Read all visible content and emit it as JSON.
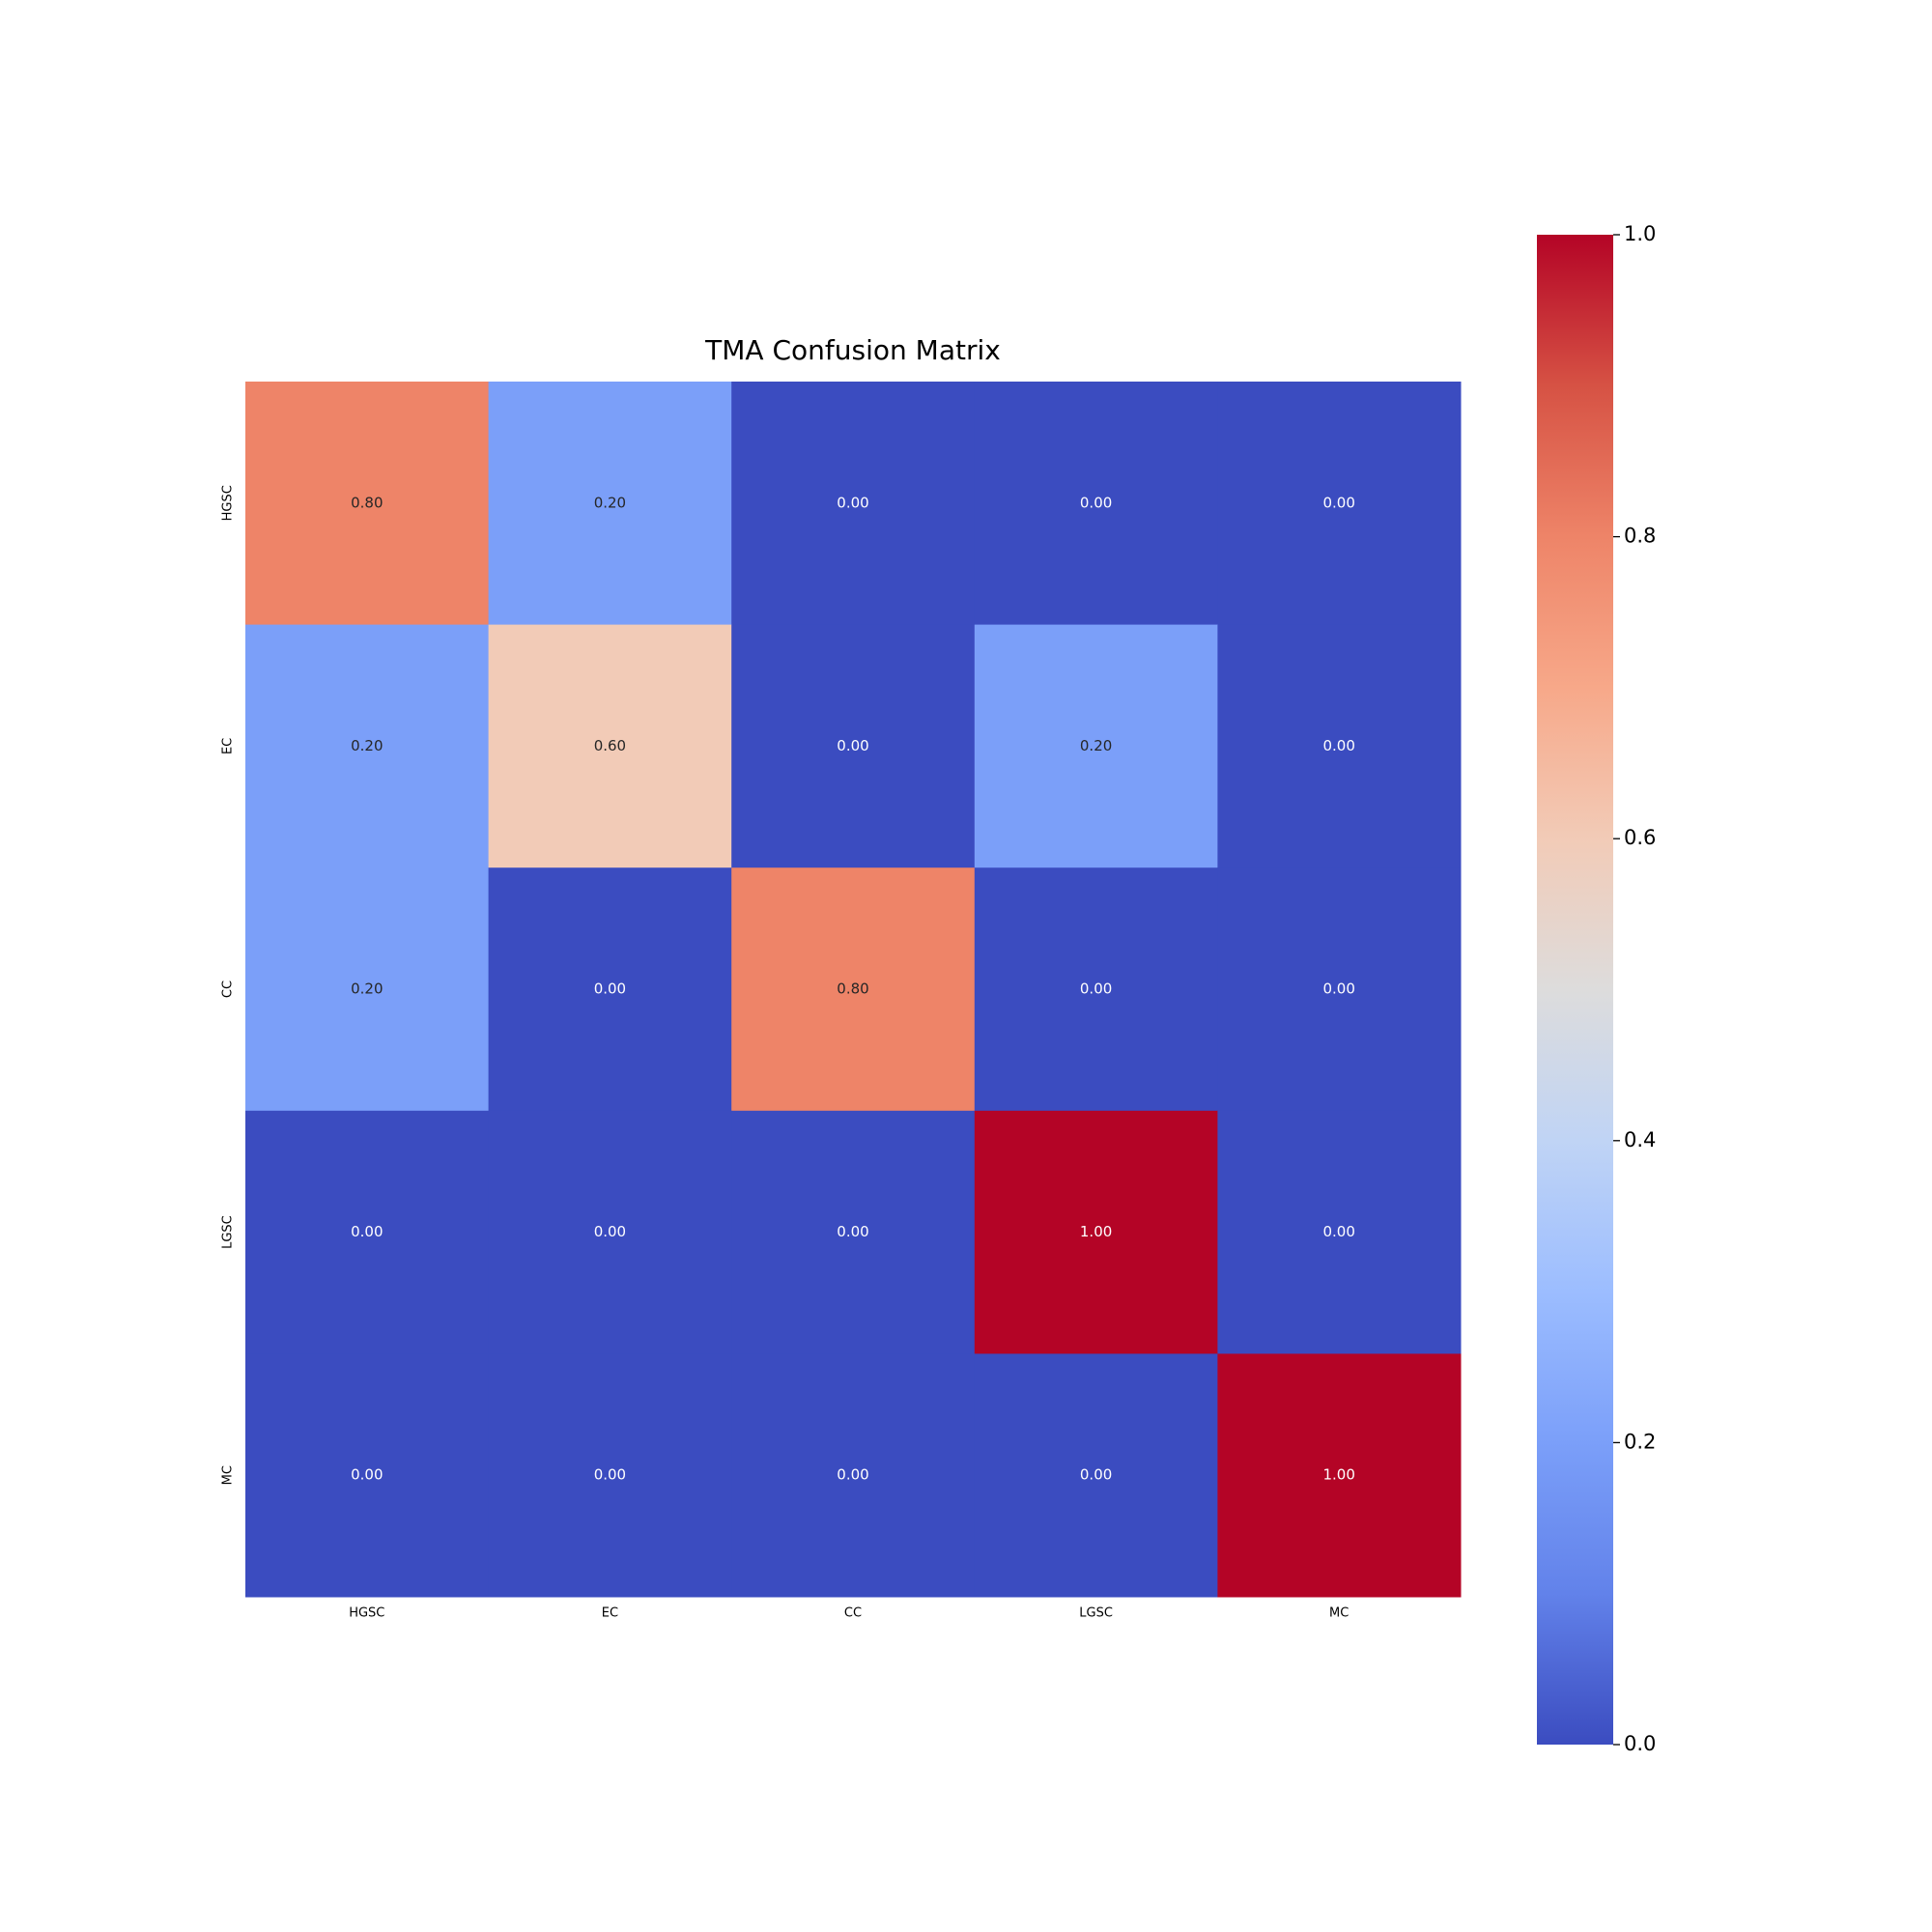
{
  "chart_data": {
    "type": "heatmap",
    "title": "TMA Confusion Matrix",
    "x_categories": [
      "HGSC",
      "EC",
      "CC",
      "LGSC",
      "MC"
    ],
    "y_categories": [
      "HGSC",
      "EC",
      "CC",
      "LGSC",
      "MC"
    ],
    "values": [
      [
        0.8,
        0.2,
        0,
        0,
        0
      ],
      [
        0.2,
        0.6,
        0,
        0.2,
        0
      ],
      [
        0.2,
        0,
        0.8,
        0,
        0
      ],
      [
        0,
        0,
        0,
        1,
        0
      ],
      [
        0,
        0,
        0,
        0,
        1
      ]
    ],
    "value_labels": [
      [
        "0.80",
        "0.20",
        "0.00",
        "0.00",
        "0.00"
      ],
      [
        "0.20",
        "0.60",
        "0.00",
        "0.20",
        "0.00"
      ],
      [
        "0.20",
        "0.00",
        "0.80",
        "0.00",
        "0.00"
      ],
      [
        "0.00",
        "0.00",
        "0.00",
        "1.00",
        "0.00"
      ],
      [
        "0.00",
        "0.00",
        "0.00",
        "0.00",
        "1.00"
      ]
    ],
    "colormap": "coolwarm",
    "clim": [
      0,
      1
    ],
    "cticks": [
      {
        "value": 0,
        "label": "0.0"
      },
      0.2,
      0.4,
      0.6,
      0.8,
      {
        "value": 1,
        "label": "1.0"
      }
    ]
  }
}
